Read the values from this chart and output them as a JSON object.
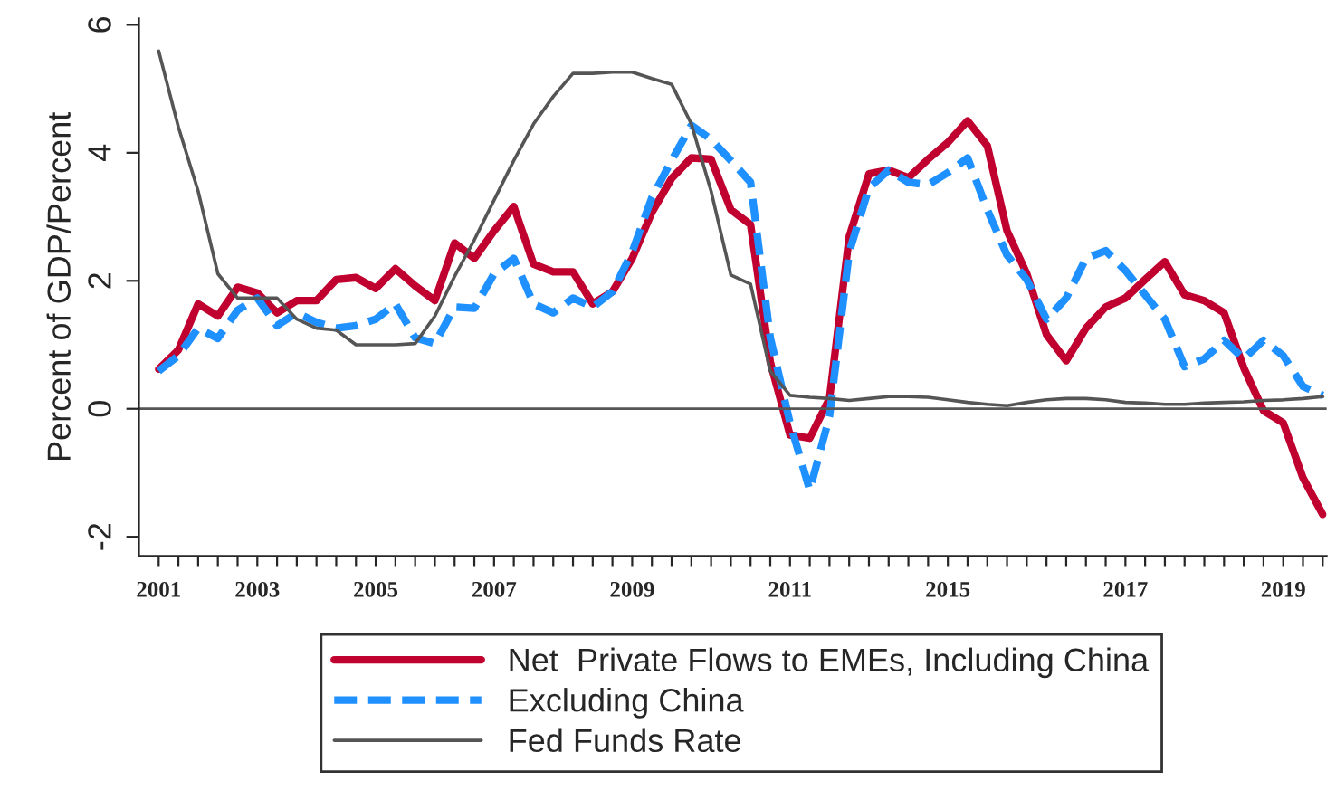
{
  "chart_data": {
    "type": "line",
    "ylabel": "Percent of GDP/Percent",
    "categories": [
      "2001",
      null,
      null,
      null,
      null,
      "2003",
      null,
      null,
      null,
      null,
      null,
      "2005",
      null,
      null,
      null,
      null,
      null,
      "2007",
      null,
      null,
      null,
      null,
      null,
      null,
      "2009",
      null,
      null,
      null,
      null,
      null,
      null,
      null,
      "2011",
      null,
      null,
      null,
      null,
      null,
      null,
      null,
      "2015",
      null,
      null,
      null,
      null,
      null,
      null,
      null,
      null,
      "2017",
      null,
      null,
      null,
      null,
      null,
      null,
      null,
      "2019",
      null,
      null
    ],
    "series": [
      {
        "name": "Net  Private Flows to EMEs, Including China",
        "color": "#c0002f",
        "line_style": "solid",
        "values": [
          0.62,
          0.92,
          1.64,
          1.45,
          1.9,
          1.81,
          1.5,
          1.69,
          1.69,
          2.02,
          2.05,
          1.88,
          2.19,
          1.92,
          1.69,
          2.59,
          2.35,
          2.78,
          3.16,
          2.26,
          2.14,
          2.14,
          1.64,
          1.83,
          2.35,
          3.07,
          3.6,
          3.92,
          3.9,
          3.11,
          2.88,
          0.73,
          -0.41,
          -0.46,
          0.16,
          2.69,
          3.67,
          3.73,
          3.61,
          3.9,
          4.16,
          4.5,
          4.11,
          2.78,
          2.11,
          1.16,
          0.75,
          1.26,
          1.59,
          1.73,
          2.02,
          2.3,
          1.78,
          1.69,
          1.5,
          0.64,
          -0.03,
          -0.22,
          -1.08,
          -1.65
        ]
      },
      {
        "name": "Excluding China",
        "color": "#1e90ff",
        "line_style": "dashed",
        "values": [
          0.59,
          0.83,
          1.26,
          1.1,
          1.54,
          1.73,
          1.3,
          1.5,
          1.35,
          1.26,
          1.3,
          1.4,
          1.64,
          1.11,
          1.02,
          1.59,
          1.57,
          2.11,
          2.35,
          1.64,
          1.5,
          1.73,
          1.59,
          1.83,
          2.45,
          3.3,
          3.88,
          4.43,
          4.21,
          3.88,
          3.54,
          1.11,
          -0.22,
          -1.27,
          -0.12,
          2.45,
          3.45,
          3.73,
          3.54,
          3.5,
          3.69,
          3.92,
          3.11,
          2.4,
          2.02,
          1.4,
          1.73,
          2.35,
          2.47,
          2.16,
          1.78,
          1.4,
          0.66,
          0.78,
          1.07,
          0.78,
          1.07,
          0.83,
          0.35,
          0.21
        ]
      },
      {
        "name": "Fed Funds Rate",
        "color": "#555555",
        "line_style": "solid",
        "values": [
          5.59,
          4.4,
          3.4,
          2.11,
          1.73,
          1.73,
          1.73,
          1.4,
          1.26,
          1.23,
          1.0,
          1.0,
          1.0,
          1.02,
          1.45,
          2.07,
          2.64,
          3.26,
          3.88,
          4.45,
          4.88,
          5.24,
          5.24,
          5.26,
          5.26,
          5.16,
          5.07,
          4.45,
          3.4,
          2.09,
          1.95,
          0.59,
          0.21,
          0.18,
          0.16,
          0.13,
          0.16,
          0.19,
          0.19,
          0.18,
          0.14,
          0.1,
          0.07,
          0.05,
          0.1,
          0.14,
          0.16,
          0.16,
          0.14,
          0.1,
          0.09,
          0.07,
          0.07,
          0.09,
          0.1,
          0.11,
          0.13,
          0.14,
          0.16,
          0.19
        ]
      }
    ],
    "ylim": [
      -2.3,
      6.1
    ],
    "yticks": [
      -2,
      0,
      2,
      4,
      6
    ],
    "ref_lines": [
      {
        "axis": "y",
        "value": 0,
        "color": "#555555",
        "line_style": "solid"
      }
    ],
    "grid": false,
    "legend": "bottom",
    "marker": "none"
  }
}
